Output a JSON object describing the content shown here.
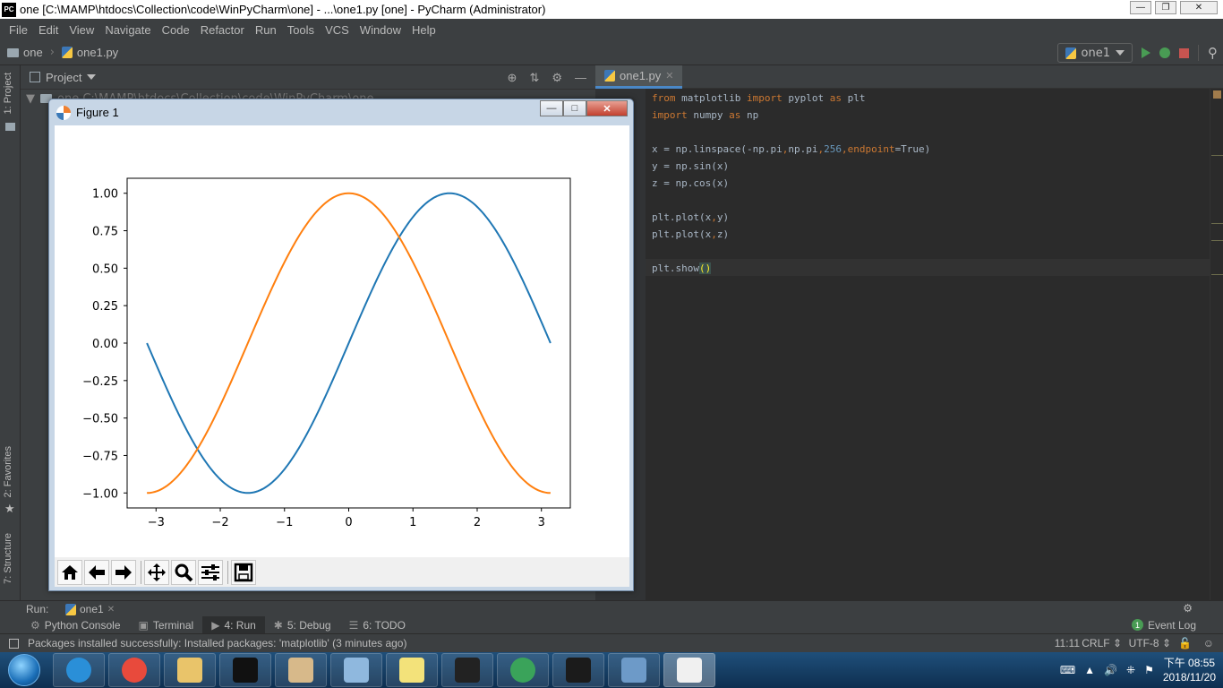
{
  "window": {
    "title": "one [C:\\MAMP\\htdocs\\Collection\\code\\WinPyCharm\\one] - ...\\one1.py [one] - PyCharm (Administrator)",
    "app_icon": "PC"
  },
  "menu": [
    "File",
    "Edit",
    "View",
    "Navigate",
    "Code",
    "Refactor",
    "Run",
    "Tools",
    "VCS",
    "Window",
    "Help"
  ],
  "breadcrumb": {
    "project": "one",
    "file": "one1.py"
  },
  "run_config": "one1",
  "project_panel": {
    "title": "Project",
    "root_row": "one C:\\MAMP\\htdocs\\Collection\\code\\WinPyCharm\\one"
  },
  "left_tabs": {
    "project": "1: Project",
    "favorites": "2: Favorites",
    "structure": "7: Structure"
  },
  "editor": {
    "tab": "one1.py",
    "lines": [
      {
        "parts": [
          {
            "t": "from ",
            "c": "kw"
          },
          {
            "t": "matplotlib ",
            "c": ""
          },
          {
            "t": "import ",
            "c": "kw"
          },
          {
            "t": "pyplot ",
            "c": ""
          },
          {
            "t": "as ",
            "c": "kw"
          },
          {
            "t": "plt",
            "c": ""
          }
        ]
      },
      {
        "parts": [
          {
            "t": "import ",
            "c": "kw"
          },
          {
            "t": "numpy ",
            "c": ""
          },
          {
            "t": "as ",
            "c": "kw"
          },
          {
            "t": "np",
            "c": ""
          }
        ]
      },
      {
        "parts": []
      },
      {
        "parts": [
          {
            "t": "x = np.linspace(-np.pi",
            "c": ""
          },
          {
            "t": ",",
            "c": "kw"
          },
          {
            "t": "np.pi",
            "c": ""
          },
          {
            "t": ",",
            "c": "kw"
          },
          {
            "t": "256",
            "c": "num"
          },
          {
            "t": ",",
            "c": "kw"
          },
          {
            "t": "endpoint",
            "c": "kw"
          },
          {
            "t": "=True)",
            "c": ""
          }
        ]
      },
      {
        "parts": [
          {
            "t": "y = np.sin(x)",
            "c": ""
          }
        ]
      },
      {
        "parts": [
          {
            "t": "z = np.cos(x)",
            "c": ""
          }
        ]
      },
      {
        "parts": []
      },
      {
        "parts": [
          {
            "t": "plt.plot(x",
            "c": ""
          },
          {
            "t": ",",
            "c": "kw"
          },
          {
            "t": "y)",
            "c": ""
          }
        ]
      },
      {
        "parts": [
          {
            "t": "plt.plot(x",
            "c": ""
          },
          {
            "t": ",",
            "c": "kw"
          },
          {
            "t": "z)",
            "c": ""
          }
        ]
      },
      {
        "parts": []
      },
      {
        "parts": [
          {
            "t": "plt.show",
            "c": ""
          },
          {
            "t": "()",
            "c": "sel"
          }
        ]
      }
    ]
  },
  "figure": {
    "title": "Figure 1",
    "toolbar": [
      "home-icon",
      "back-arrow-icon",
      "forward-arrow-icon",
      "pan-icon",
      "zoom-icon",
      "configure-subplots-icon",
      "save-icon"
    ]
  },
  "chart_data": {
    "type": "line",
    "title": "",
    "xlabel": "",
    "ylabel": "",
    "xlim": [
      -3.45,
      3.45
    ],
    "ylim": [
      -1.1,
      1.1
    ],
    "xticks": [
      "−3",
      "−2",
      "−1",
      "0",
      "1",
      "2",
      "3"
    ],
    "yticks": [
      "1.00",
      "0.75",
      "0.50",
      "0.25",
      "0.00",
      "−0.25",
      "−0.50",
      "−0.75",
      "−1.00"
    ],
    "grid": false,
    "x_range": [
      -3.14159,
      3.14159
    ],
    "points": 256,
    "series": [
      {
        "function": "sin",
        "color": "#1f77b4"
      },
      {
        "function": "cos",
        "color": "#ff7f0e"
      }
    ]
  },
  "run_bar": {
    "label": "Run:",
    "tab": "one1"
  },
  "tool_windows": [
    {
      "label": "Python Console",
      "icon": "python-console-icon"
    },
    {
      "label": "Terminal",
      "icon": "terminal-icon"
    },
    {
      "label": "4: Run",
      "icon": "run-icon",
      "active": true
    },
    {
      "label": "5: Debug",
      "icon": "debug-icon"
    },
    {
      "label": "6: TODO",
      "icon": "todo-icon"
    }
  ],
  "event_log": {
    "label": "Event Log",
    "count": "1"
  },
  "status": {
    "message": "Packages installed successfully: Installed packages: 'matplotlib' (3 minutes ago)",
    "position": "11:11",
    "line_sep": "CRLF",
    "encoding": "UTF-8"
  },
  "taskbar": {
    "apps": [
      "ie-icon",
      "chrome-icon",
      "explorer-icon",
      "cmd-icon",
      "paint-icon",
      "notepad-icon",
      "sticky-notes-icon",
      "intellij-icon",
      "refresh-app-icon",
      "pycharm-icon",
      "photo-viewer-icon",
      "matplotlib-figure-icon"
    ],
    "time": "下午 08:55",
    "date": "2018/11/20"
  }
}
